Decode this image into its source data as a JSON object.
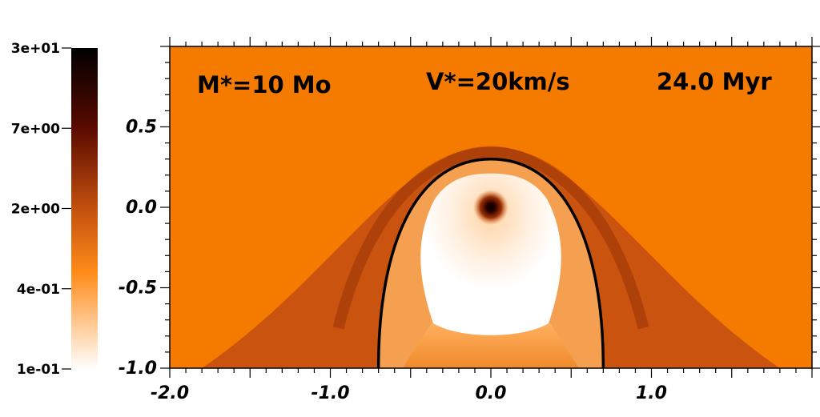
{
  "chart_data": {
    "type": "heatmap",
    "title": "",
    "xlabel": "",
    "ylabel": "",
    "xlim": [
      -2.0,
      2.0
    ],
    "ylim": [
      -1.0,
      1.0
    ],
    "x_ticks": [
      -2.0,
      -1.0,
      0.0,
      1.0
    ],
    "x_tick_labels": [
      "-2.0",
      "-1.0",
      "0.0",
      "1.0"
    ],
    "y_ticks": [
      0.5,
      0.0,
      -0.5,
      -1.0
    ],
    "y_tick_labels": [
      "0.5",
      "0.0",
      "-0.5",
      "-1.0"
    ],
    "annotations": [
      "M*=10 Mo",
      "V*=20km/s",
      "24.0 Myr"
    ],
    "colorbar": {
      "scale": "log",
      "range": [
        0.1,
        30
      ],
      "ticks": [
        30,
        7,
        2,
        0.4,
        0.1
      ],
      "tick_labels": [
        "3e+01",
        "7e+00",
        "2e+00",
        "4e-01",
        "1e-01"
      ],
      "colormap": [
        "#ffffff",
        "#ff8c1a",
        "#c2500e",
        "#5a0a00",
        "#000000"
      ]
    },
    "colors": {
      "ambient_medium": "#f57a00",
      "shocked_shell": "#c9530f",
      "shell_inner_edge": "#7a1f00",
      "wind_bubble": "#ffffff",
      "contour_line": "#000000"
    },
    "features": {
      "star_position": [
        0.0,
        0.0
      ],
      "bow_shock_apex_y": 0.38,
      "bow_shock_base_x": [
        -1.8,
        1.8
      ],
      "contact_discontinuity_apex_y": 0.3,
      "contact_discontinuity_base_x": [
        -0.7,
        0.7
      ]
    }
  }
}
